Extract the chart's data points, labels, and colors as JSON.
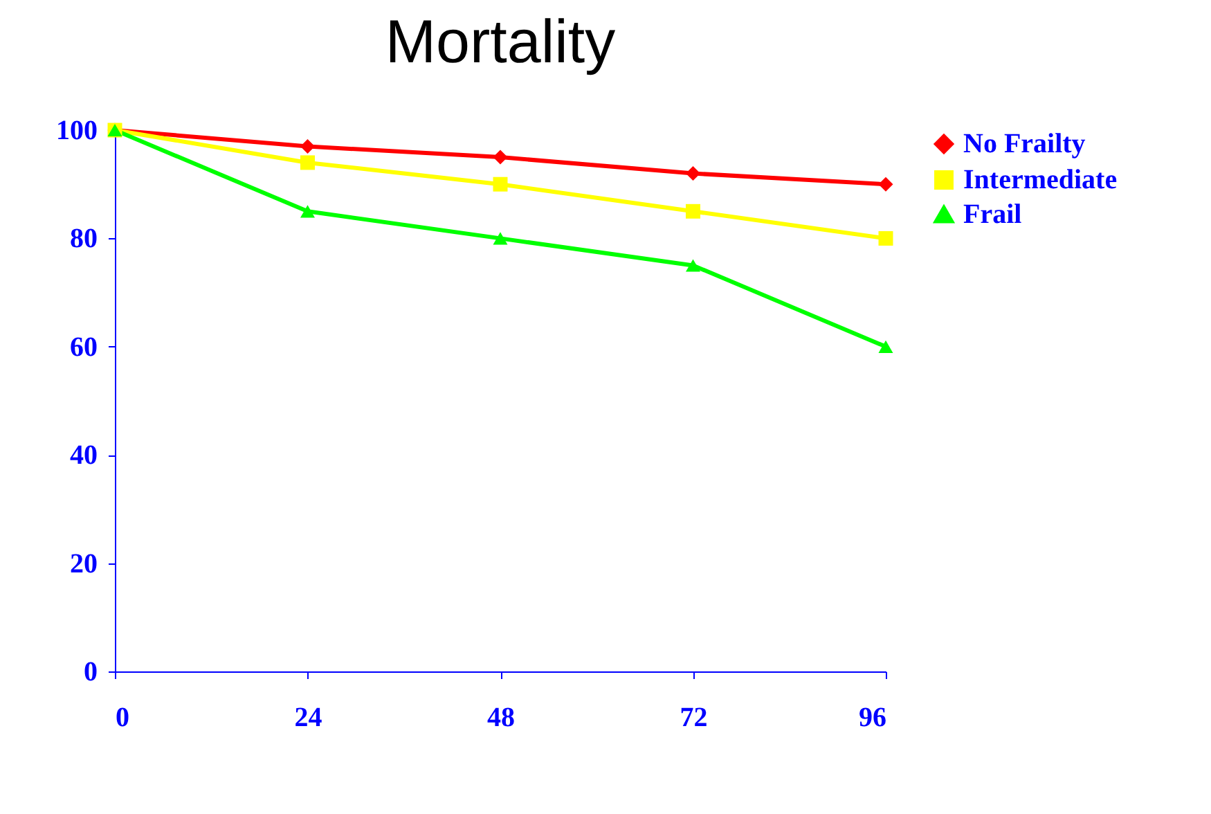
{
  "chart_data": {
    "type": "line",
    "title": "Mortality",
    "x": [
      0,
      24,
      48,
      72,
      96
    ],
    "series": [
      {
        "name": "No Frailty",
        "color": "#ff0000",
        "marker": "diamond",
        "values": [
          100,
          97,
          95,
          92,
          90
        ]
      },
      {
        "name": "Intermediate",
        "color": "#ffff00",
        "marker": "square",
        "values": [
          100,
          94,
          90,
          85,
          80
        ]
      },
      {
        "name": "Frail",
        "color": "#00ff00",
        "marker": "triangle",
        "values": [
          100,
          85,
          80,
          75,
          60
        ]
      }
    ],
    "xlim": [
      0,
      96
    ],
    "xticks": [
      0,
      24,
      48,
      72,
      96
    ],
    "ylim": [
      0,
      100
    ],
    "yticks": [
      0,
      20,
      40,
      60,
      80,
      100
    ],
    "grid": false,
    "legend": "right",
    "line_style": "solid"
  }
}
